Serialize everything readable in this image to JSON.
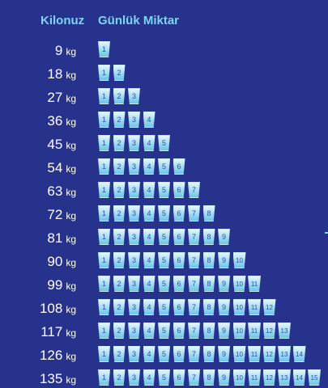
{
  "header": {
    "weight_label": "Kilonuz",
    "amount_label": "Günlük Miktar"
  },
  "unit": "kg",
  "rows": [
    {
      "weight": "9",
      "glasses": 1
    },
    {
      "weight": "18",
      "glasses": 2
    },
    {
      "weight": "27",
      "glasses": 3
    },
    {
      "weight": "36",
      "glasses": 4
    },
    {
      "weight": "45",
      "glasses": 5
    },
    {
      "weight": "54",
      "glasses": 6
    },
    {
      "weight": "63",
      "glasses": 7
    },
    {
      "weight": "72",
      "glasses": 8
    },
    {
      "weight": "81",
      "glasses": 9
    },
    {
      "weight": "90",
      "glasses": 10
    },
    {
      "weight": "99",
      "glasses": 11
    },
    {
      "weight": "108",
      "glasses": 12
    },
    {
      "weight": "117",
      "glasses": 13
    },
    {
      "weight": "126",
      "glasses": 14
    },
    {
      "weight": "135",
      "glasses": 15
    }
  ],
  "colors": {
    "background": "#26328c",
    "accent": "#7dd6f5",
    "glass": "#9fdaf3",
    "text": "#ffffff"
  },
  "icons": {
    "glass": "water-glass-icon"
  }
}
